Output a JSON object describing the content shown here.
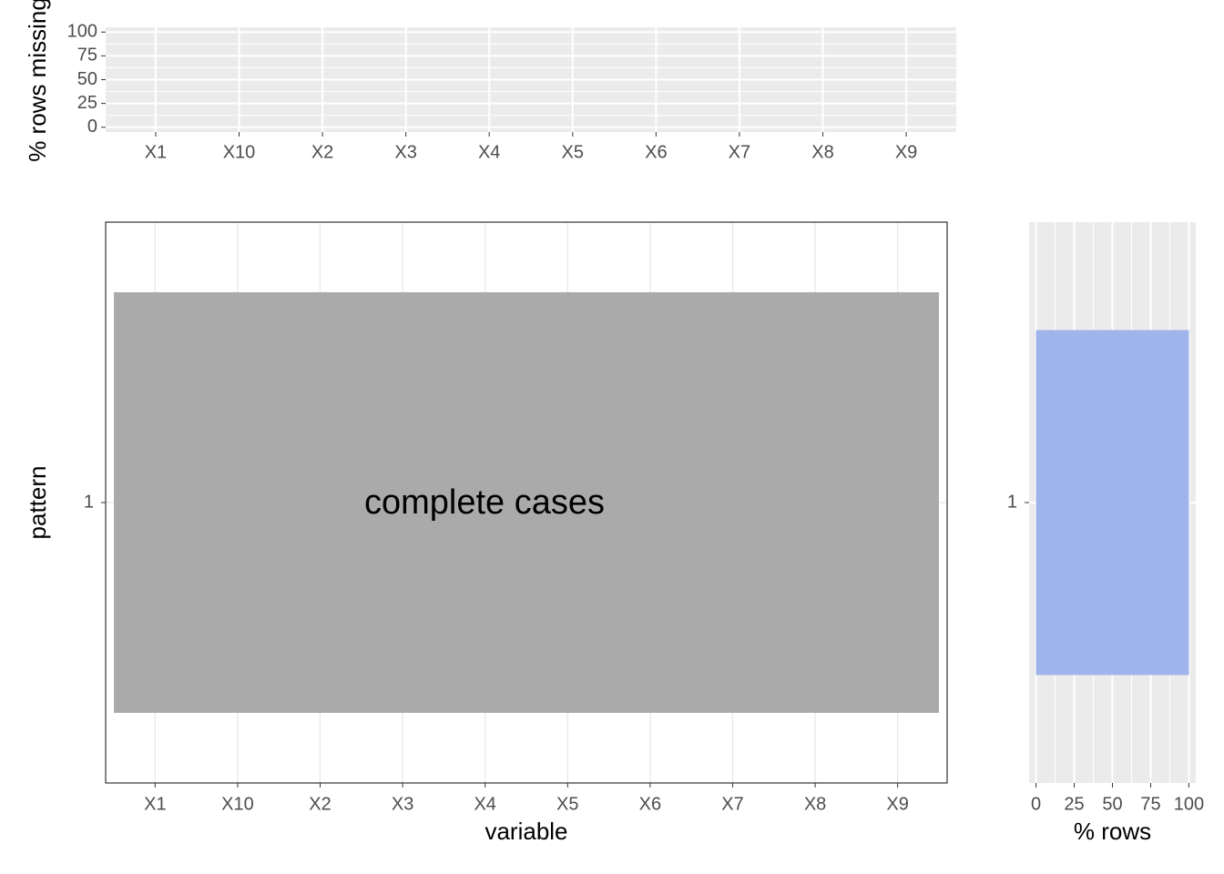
{
  "chart_data": [
    {
      "type": "bar",
      "ylabel": "% rows missing",
      "categories": [
        "X1",
        "X10",
        "X2",
        "X3",
        "X4",
        "X5",
        "X6",
        "X7",
        "X8",
        "X9"
      ],
      "values": [
        0,
        0,
        0,
        0,
        0,
        0,
        0,
        0,
        0,
        0
      ],
      "color": "#9eb4eb",
      "ylim": [
        -5,
        105
      ],
      "yticks": [
        0,
        25,
        50,
        75,
        100
      ],
      "grid": true
    },
    {
      "type": "tile",
      "xlabel": "variable",
      "ylabel": "pattern",
      "categories": [
        "X1",
        "X10",
        "X2",
        "X3",
        "X4",
        "X5",
        "X6",
        "X7",
        "X8",
        "X9"
      ],
      "patterns": [
        "1"
      ],
      "annotation": "complete cases",
      "color": "#aaaaaa",
      "grid": true
    },
    {
      "type": "hbar",
      "xlabel": "% rows",
      "categories": [
        "1"
      ],
      "values": [
        100
      ],
      "color": "#9eb4eb",
      "xlim": [
        -4.5,
        104.5
      ],
      "xticks": [
        0,
        25,
        50,
        75,
        100
      ],
      "grid": true
    }
  ]
}
